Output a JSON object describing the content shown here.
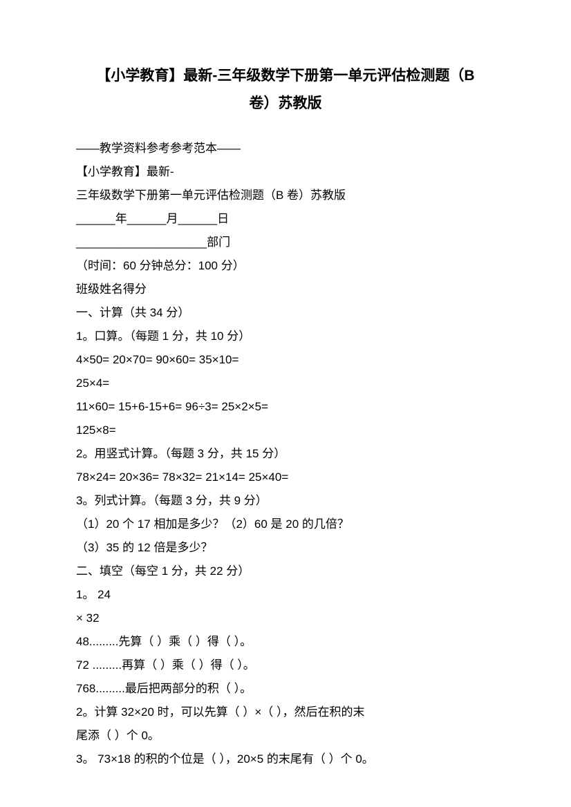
{
  "title_line1": "【小学教育】最新-三年级数学下册第一单元评估检测题（B",
  "title_line2": "卷）苏教版",
  "lines": [
    "——教学资料参考参考范本——",
    "【小学教育】最新-",
    "三年级数学下册第一单元评估检测题（B 卷）苏教版",
    "______年______月______日",
    "____________________部门",
    "（时间：60 分钟总分：100 分）",
    "班级姓名得分",
    "一、计算（共 34 分）",
    "1。口算。（每题 1 分，共 10 分）",
    "4×50= 20×70= 90×60= 35×10=",
    "25×4=",
    "11×60= 15+6-15+6= 96÷3= 25×2×5=",
    "125×8=",
    "2。用竖式计算。（每题 3 分，共 15 分）",
    "78×24= 20×36= 78×32= 21×14= 25×40=",
    "3。列式计算。（每题 3 分，共 9 分）",
    "（1）20 个 17 相加是多少？（2）60 是 20 的几倍？",
    "（3）35 的 12 倍是多少？",
    "二、填空（每空 1 分，共 22 分）",
    "1。 24",
    "× 32",
    "48.........先算（ ）乘（ ）得（ ）。",
    "72 .........再算（ ）乘（ ）得（ ）。",
    "768.........最后把两部分的积（ ）。",
    "2。计算 32×20 时，可以先算（ ）×（ ），然后在积的末",
    "尾添（ ）个 0。",
    "3。 73×18 的积的个位是（  ），20×5 的末尾有（  ）个 0。"
  ],
  "text_color": "#000000",
  "background_color": "#ffffff",
  "title_fontsize": 21,
  "body_fontsize": 17
}
